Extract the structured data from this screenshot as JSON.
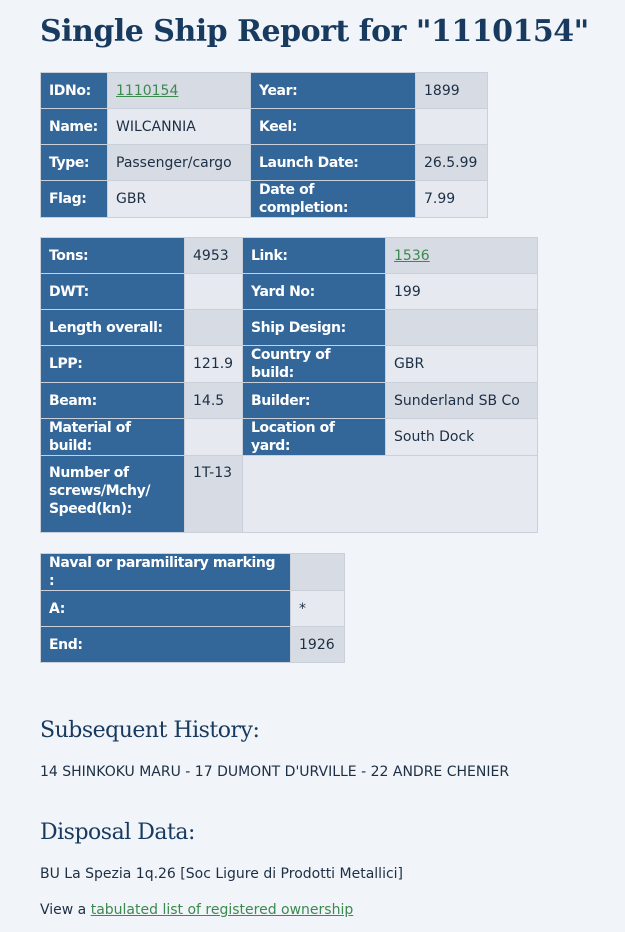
{
  "title": "Single Ship Report for \"1110154\"",
  "tables": [
    {
      "rows": [
        [
          {
            "label": "IDNo:",
            "value": "1110154",
            "link": true
          },
          {
            "label": "Year:",
            "value": "1899"
          }
        ],
        [
          {
            "label": "Name:",
            "value": "WILCANNIA"
          },
          {
            "label": "Keel:"
          }
        ],
        [
          {
            "label": "Type:",
            "value": "Passenger/cargo"
          },
          {
            "label": "Launch Date:",
            "value": "26.5.99"
          }
        ],
        [
          {
            "label": "Flag:",
            "value": "GBR"
          },
          {
            "label": "Date of completion:",
            "value": "7.99"
          }
        ]
      ]
    },
    {
      "rows": [
        [
          {
            "label": "Tons:",
            "value": "4953"
          },
          {
            "label": "Link:",
            "value": "1536",
            "link": true
          }
        ],
        [
          {
            "label": "DWT:"
          },
          {
            "label": "Yard No:",
            "value": "199"
          }
        ],
        [
          {
            "label": "Length overall:"
          },
          {
            "label": "Ship Design:"
          }
        ],
        [
          {
            "label": "LPP:",
            "value": "121.9"
          },
          {
            "label": "Country of build:",
            "value": "GBR"
          }
        ],
        [
          {
            "label": "Beam:",
            "value": "14.5"
          },
          {
            "label": "Builder:",
            "value": "Sunderland SB Co"
          }
        ],
        [
          {
            "label": "Material of build:"
          },
          {
            "label": "Location of yard:",
            "value": "South Dock"
          }
        ],
        [
          {
            "label": "Number of screws/Mchy/ Speed(kn):",
            "value": "1T-13"
          }
        ]
      ]
    },
    {
      "rows": [
        [
          {
            "label": "Naval or paramilitary marking :"
          }
        ],
        [
          {
            "label": "A:",
            "value": "*"
          }
        ],
        [
          {
            "label": "End:",
            "value": "1926"
          }
        ]
      ]
    }
  ],
  "history": {
    "heading": "Subsequent History:",
    "text": "14 SHINKOKU MARU - 17 DUMONT D'URVILLE - 22 ANDRE CHENIER"
  },
  "disposal": {
    "heading": "Disposal Data:",
    "text": "BU La Spezia 1q.26 [Soc Ligure di Prodotti Metallici]"
  },
  "view": {
    "prefix": "View a",
    "link": "tabulated list of registered ownership"
  }
}
